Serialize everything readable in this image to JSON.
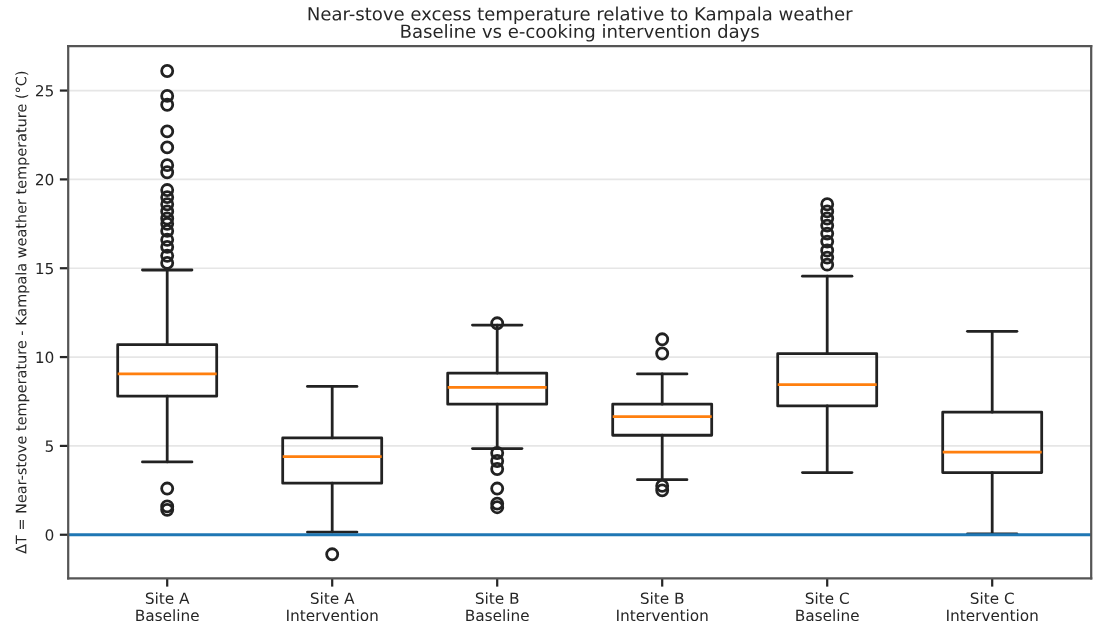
{
  "chart_data": {
    "type": "box",
    "title": "Near-stove excess temperature relative to Kampala weather\nBaseline vs e-cooking intervention days",
    "ylabel": "ΔT = Near-stove temperature - Kampala weather temperature (°C)",
    "categories": [
      "Site A\nBaseline",
      "Site A\nIntervention",
      "Site B\nBaseline",
      "Site B\nIntervention",
      "Site C\nBaseline",
      "Site C\nIntervention"
    ],
    "boxes": [
      {
        "low": 4.1,
        "q1": 7.8,
        "median": 9.05,
        "q3": 10.7,
        "high": 14.9,
        "outliers": [
          26.1,
          24.7,
          24.2,
          22.7,
          21.8,
          20.8,
          20.4,
          19.4,
          19.0,
          18.6,
          18.2,
          17.8,
          17.5,
          17.1,
          16.6,
          16.2,
          15.7,
          15.3,
          2.6,
          1.6,
          1.4
        ]
      },
      {
        "low": 0.15,
        "q1": 2.9,
        "median": 4.4,
        "q3": 5.45,
        "high": 8.35,
        "outliers": [
          -1.1
        ]
      },
      {
        "low": 4.85,
        "q1": 7.35,
        "median": 8.3,
        "q3": 9.1,
        "high": 11.8,
        "outliers": [
          11.9,
          4.6,
          4.15,
          3.7,
          2.6,
          1.75,
          1.55
        ]
      },
      {
        "low": 3.1,
        "q1": 5.6,
        "median": 6.65,
        "q3": 7.35,
        "high": 9.05,
        "outliers": [
          11.0,
          10.2,
          2.75,
          2.5
        ]
      },
      {
        "low": 3.5,
        "q1": 7.25,
        "median": 8.45,
        "q3": 10.2,
        "high": 14.55,
        "outliers": [
          18.6,
          18.2,
          17.8,
          17.4,
          16.95,
          16.5,
          16.0,
          15.6,
          15.2
        ]
      },
      {
        "low": 0.05,
        "q1": 3.5,
        "median": 4.65,
        "q3": 6.9,
        "high": 11.45
      }
    ],
    "color": "#222222",
    "ylim": [
      -2.45,
      27.5
    ],
    "yticks": [
      0,
      5,
      10,
      15,
      20,
      25
    ],
    "grid": "y",
    "ref_lines": [
      {
        "axis": "y",
        "value": 0,
        "color": "#1f77b4"
      }
    ]
  }
}
